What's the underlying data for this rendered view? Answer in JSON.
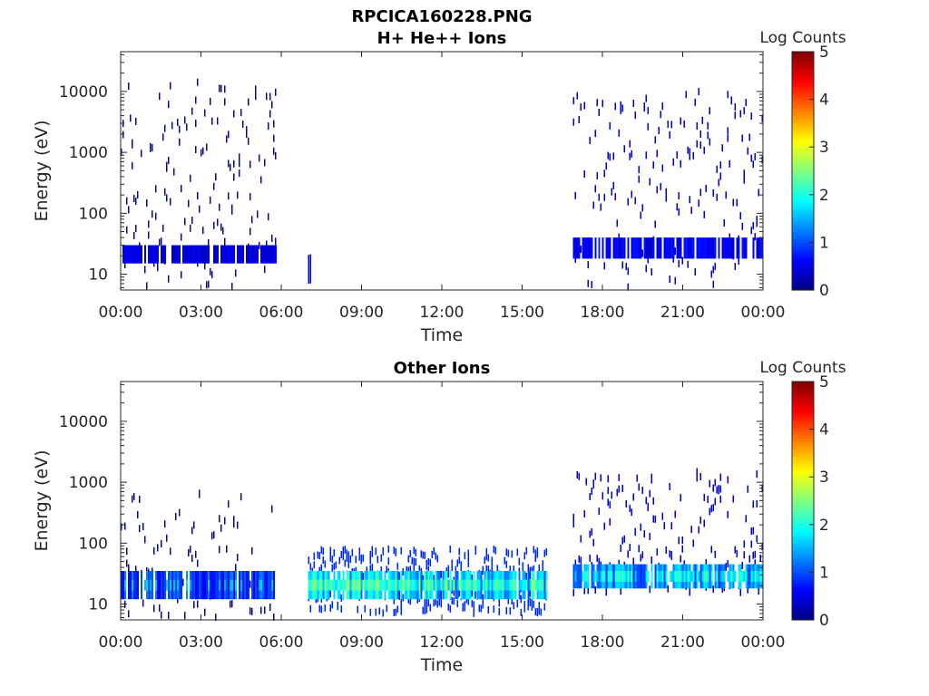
{
  "figure": {
    "title": "RPCICA160228.PNG",
    "colorbar_label": "Log Counts",
    "colormap": "jet",
    "background": "#ffffff",
    "trace_color": "#00008f"
  },
  "chart_data": [
    {
      "type": "heatmap",
      "title": "H+ He++ Ions",
      "xlabel": "Time",
      "ylabel": "Energy (eV)",
      "x_range": [
        "00:00",
        "24:00"
      ],
      "x_ticks": [
        "00:00",
        "03:00",
        "06:00",
        "09:00",
        "12:00",
        "15:00",
        "18:00",
        "21:00",
        "00:00"
      ],
      "y_scale": "log",
      "y_range": [
        5.5,
        45000
      ],
      "y_ticks": [
        "10",
        "100",
        "1000",
        "10000"
      ],
      "colorbar": {
        "label": "Log Counts",
        "min": 0,
        "max": 5,
        "ticks": [
          "0",
          "1",
          "2",
          "3",
          "4",
          "5"
        ]
      },
      "regions": [
        {
          "start_hour": 0.0,
          "end_hour": 5.8,
          "e_min": 6,
          "e_max": 15000,
          "level": 0.3,
          "density": 0.05,
          "band_min": 15,
          "band_max": 30,
          "band_level": 0.5
        },
        {
          "start_hour": 7.0,
          "end_hour": 7.1,
          "e_min": 8,
          "e_max": 20,
          "level": 0.3,
          "density": 0.5
        },
        {
          "start_hour": 16.9,
          "end_hour": 24.0,
          "e_min": 6,
          "e_max": 10000,
          "level": 0.3,
          "density": 0.05,
          "band_min": 18,
          "band_max": 40,
          "band_level": 0.6
        }
      ]
    },
    {
      "type": "heatmap",
      "title": "Other Ions",
      "xlabel": "Time",
      "ylabel": "Energy (eV)",
      "x_range": [
        "00:00",
        "24:00"
      ],
      "x_ticks": [
        "00:00",
        "03:00",
        "06:00",
        "09:00",
        "12:00",
        "15:00",
        "18:00",
        "21:00",
        "00:00"
      ],
      "y_scale": "log",
      "y_range": [
        5.5,
        45000
      ],
      "y_ticks": [
        "10",
        "100",
        "1000",
        "10000"
      ],
      "colorbar": {
        "label": "Log Counts",
        "min": 0,
        "max": 5,
        "ticks": [
          "0",
          "1",
          "2",
          "3",
          "4",
          "5"
        ]
      },
      "regions": [
        {
          "start_hour": 0.0,
          "end_hour": 5.7,
          "e_min": 6,
          "e_max": 700,
          "level": 0.3,
          "density": 0.03,
          "band_min": 12,
          "band_max": 35,
          "band_level": 1.0
        },
        {
          "start_hour": 7.0,
          "end_hour": 15.9,
          "e_min": 7,
          "e_max": 80,
          "level": 0.8,
          "density": 0.1,
          "band_min": 12,
          "band_max": 35,
          "band_level": 1.7
        },
        {
          "start_hour": 16.9,
          "end_hour": 24.0,
          "e_min": 15,
          "e_max": 1500,
          "level": 0.3,
          "density": 0.05,
          "band_min": 18,
          "band_max": 45,
          "band_level": 1.4
        }
      ]
    }
  ]
}
